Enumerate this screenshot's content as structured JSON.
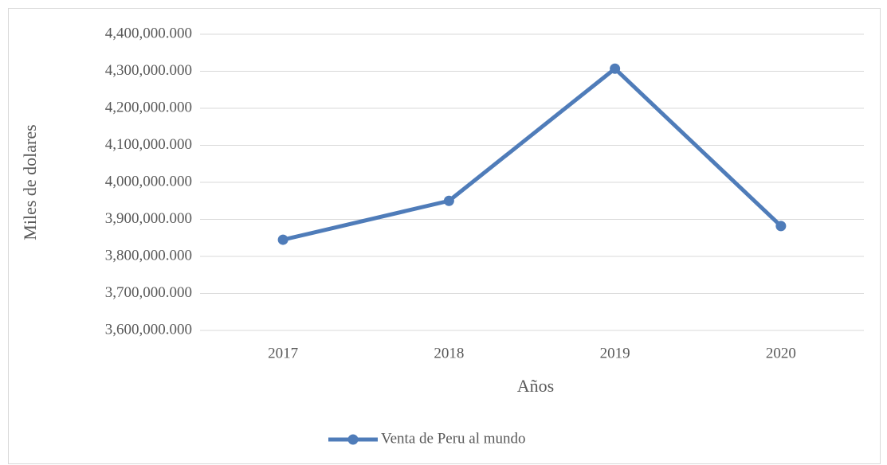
{
  "chart_data": {
    "type": "line",
    "x_label": "Años",
    "y_label": "Miles de dolares",
    "categories": [
      "2017",
      "2018",
      "2019",
      "2020"
    ],
    "series": [
      {
        "name": "Venta de Peru al mundo",
        "color": "#4f7cb9",
        "values": [
          3845000,
          3950000,
          4307000,
          3882000
        ]
      }
    ],
    "ylim": [
      3600000,
      4400000
    ],
    "yticks": [
      {
        "value": 3600000,
        "label": "3,600,000.000"
      },
      {
        "value": 3700000,
        "label": "3,700,000.000"
      },
      {
        "value": 3800000,
        "label": "3,800,000.000"
      },
      {
        "value": 3900000,
        "label": "3,900,000.000"
      },
      {
        "value": 4000000,
        "label": "4,000,000.000"
      },
      {
        "value": 4100000,
        "label": "4,100,000.000"
      },
      {
        "value": 4200000,
        "label": "4,200,000.000"
      },
      {
        "value": 4300000,
        "label": "4,300,000.000"
      },
      {
        "value": 4400000,
        "label": "4,400,000.000"
      }
    ],
    "grid": true,
    "legend": "bottom"
  }
}
